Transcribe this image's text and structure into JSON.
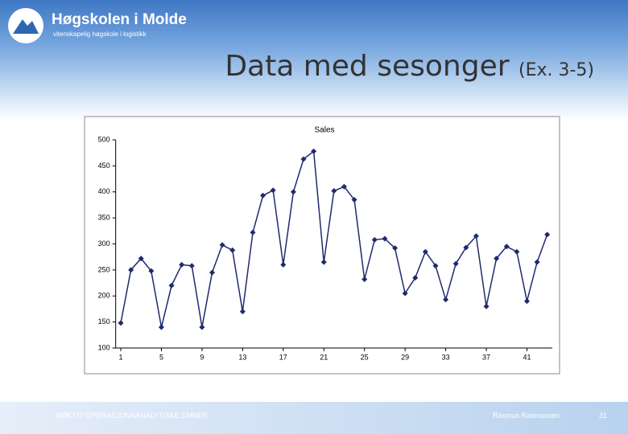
{
  "slide": {
    "logo_name": "Høgskolen i Molde",
    "logo_tagline": "vitenskapelig høgskole i logistikk",
    "title": "Data med sesonger",
    "title_suffix": "(Ex. 3-5)",
    "footer_left": "BØK710 OPERASJONSANALYTISKE EMNER",
    "footer_author": "Rasmus Rasmussen",
    "page_number": "31"
  },
  "chart_data": {
    "type": "line",
    "title": "Sales",
    "x": [
      1,
      2,
      3,
      4,
      5,
      6,
      7,
      8,
      9,
      10,
      11,
      12,
      13,
      14,
      15,
      16,
      17,
      18,
      19,
      20,
      21,
      22,
      23,
      24,
      25,
      26,
      27,
      28,
      29,
      30,
      31,
      32,
      33,
      34,
      35,
      36,
      37,
      38,
      39,
      40,
      41,
      42,
      43
    ],
    "values": [
      148,
      250,
      272,
      248,
      140,
      220,
      260,
      258,
      140,
      245,
      298,
      288,
      170,
      322,
      393,
      403,
      260,
      400,
      463,
      478,
      265,
      402,
      410,
      385,
      232,
      308,
      310,
      292,
      205,
      235,
      285,
      258,
      193,
      262,
      293,
      315,
      180,
      272,
      295,
      285,
      190,
      265,
      318
    ],
    "color": "#1f2a6e",
    "xlim": [
      0.5,
      43.5
    ],
    "xticks": [
      1,
      5,
      9,
      13,
      17,
      21,
      25,
      29,
      33,
      37,
      41
    ],
    "ylim": [
      100,
      500
    ],
    "yticks": [
      100,
      150,
      200,
      250,
      300,
      350,
      400,
      450,
      500
    ],
    "grid": false
  }
}
